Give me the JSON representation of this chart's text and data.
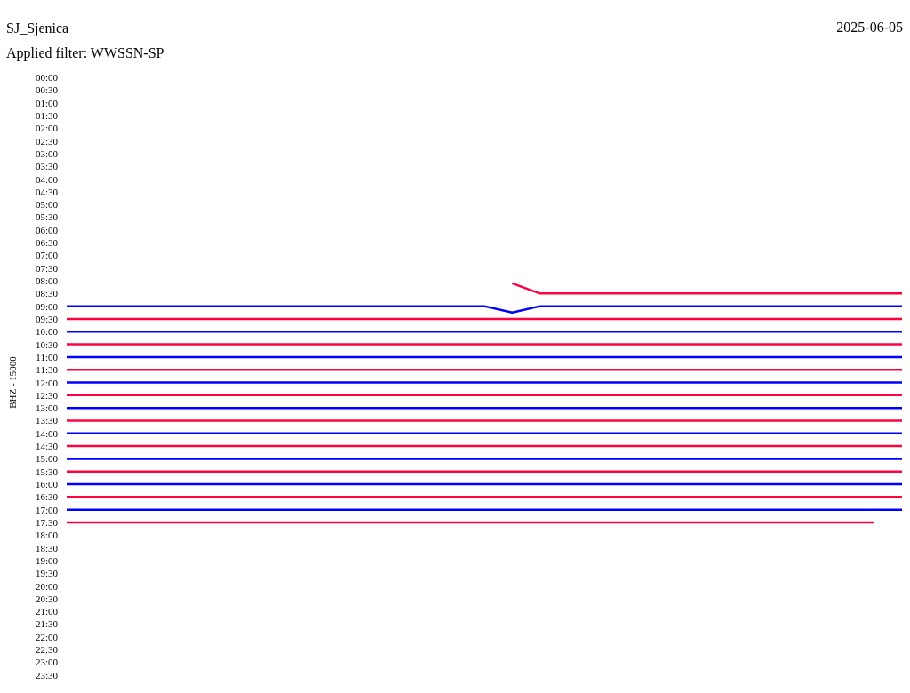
{
  "chart_data": {
    "type": "line",
    "title": "SJ_Sjenica",
    "ylabel": "BHZ - 15000",
    "annotations": [
      "2025-06-05",
      "Applied filter: WWSSN-SP"
    ],
    "categories": [
      null,
      null,
      null,
      null,
      null,
      null,
      null,
      null,
      null,
      null,
      null,
      null,
      null,
      null,
      null,
      null,
      null,
      null,
      null,
      null,
      null,
      null,
      null,
      null,
      null,
      null,
      null,
      null,
      null,
      null,
      null
    ],
    "ylim": [
      24,
      0
    ],
    "yticks": [
      {
        "value": 0,
        "label": "00:00"
      },
      {
        "value": 0.5,
        "label": "00:30"
      },
      {
        "value": 1,
        "label": "01:00"
      },
      {
        "value": 1.5,
        "label": "01:30"
      },
      {
        "value": 2,
        "label": "02:00"
      },
      {
        "value": 2.5,
        "label": "02:30"
      },
      {
        "value": 3,
        "label": "03:00"
      },
      {
        "value": 3.5,
        "label": "03:30"
      },
      {
        "value": 4,
        "label": "04:00"
      },
      {
        "value": 4.5,
        "label": "04:30"
      },
      {
        "value": 5,
        "label": "05:00"
      },
      {
        "value": 5.5,
        "label": "05:30"
      },
      {
        "value": 6,
        "label": "06:00"
      },
      {
        "value": 6.5,
        "label": "06:30"
      },
      {
        "value": 7,
        "label": "07:00"
      },
      {
        "value": 7.5,
        "label": "07:30"
      },
      {
        "value": 8,
        "label": "08:00"
      },
      {
        "value": 8.5,
        "label": "08:30"
      },
      {
        "value": 9,
        "label": "09:00"
      },
      {
        "value": 9.5,
        "label": "09:30"
      },
      {
        "value": 10,
        "label": "10:00"
      },
      {
        "value": 10.5,
        "label": "10:30"
      },
      {
        "value": 11,
        "label": "11:00"
      },
      {
        "value": 11.5,
        "label": "11:30"
      },
      {
        "value": 12,
        "label": "12:00"
      },
      {
        "value": 12.5,
        "label": "12:30"
      },
      {
        "value": 13,
        "label": "13:00"
      },
      {
        "value": 13.5,
        "label": "13:30"
      },
      {
        "value": 14,
        "label": "14:00"
      },
      {
        "value": 14.5,
        "label": "14:30"
      },
      {
        "value": 15,
        "label": "15:00"
      },
      {
        "value": 15.5,
        "label": "15:30"
      },
      {
        "value": 16,
        "label": "16:00"
      },
      {
        "value": 16.5,
        "label": "16:30"
      },
      {
        "value": 17,
        "label": "17:00"
      },
      {
        "value": 17.5,
        "label": "17:30"
      },
      {
        "value": 18,
        "label": "18:00"
      },
      {
        "value": 18.5,
        "label": "18:30"
      },
      {
        "value": 19,
        "label": "19:00"
      },
      {
        "value": 19.5,
        "label": "19:30"
      },
      {
        "value": 20,
        "label": "20:00"
      },
      {
        "value": 20.5,
        "label": "20:30"
      },
      {
        "value": 21,
        "label": "21:00"
      },
      {
        "value": 21.5,
        "label": "21:30"
      },
      {
        "value": 22,
        "label": "22:00"
      },
      {
        "value": 22.5,
        "label": "22:30"
      },
      {
        "value": 23,
        "label": "23:00"
      },
      {
        "value": 23.5,
        "label": "23:30"
      }
    ],
    "tick_labels": "y",
    "series": [
      {
        "color": "#ff0040",
        "values": [
          null,
          null,
          null,
          null,
          null,
          null,
          null,
          null,
          null,
          null,
          null,
          null,
          null,
          null,
          null,
          null,
          8.1,
          8.5,
          8.5,
          8.5,
          8.5,
          8.5,
          8.5,
          8.5,
          8.5,
          8.5,
          8.5,
          8.5,
          8.5,
          8.5,
          8.5
        ]
      },
      {
        "color": "#0000ff",
        "values": [
          9,
          9,
          9,
          9,
          9,
          9,
          9,
          9,
          9,
          9,
          9,
          9,
          9,
          9,
          9,
          9,
          9.25,
          9,
          9,
          9,
          9,
          9,
          9,
          9,
          9,
          9,
          9,
          9,
          9,
          9,
          9
        ]
      },
      {
        "color": "#ff0040",
        "values": [
          9.5,
          9.5,
          9.5,
          9.5,
          9.5,
          9.5,
          9.5,
          9.5,
          9.5,
          9.5,
          9.5,
          9.5,
          9.5,
          9.5,
          9.5,
          9.5,
          9.5,
          9.5,
          9.5,
          9.5,
          9.5,
          9.5,
          9.5,
          9.5,
          9.5,
          9.5,
          9.5,
          9.5,
          9.5,
          9.5,
          9.5
        ]
      },
      {
        "color": "#0000ff",
        "values": [
          10,
          10,
          10,
          10,
          10,
          10,
          10,
          10,
          10,
          10,
          10,
          10,
          10,
          10,
          10,
          10,
          10,
          10,
          10,
          10,
          10,
          10,
          10,
          10,
          10,
          10,
          10,
          10,
          10,
          10,
          10
        ]
      },
      {
        "color": "#ff0040",
        "values": [
          10.5,
          10.5,
          10.5,
          10.5,
          10.5,
          10.5,
          10.5,
          10.5,
          10.5,
          10.5,
          10.5,
          10.5,
          10.5,
          10.5,
          10.5,
          10.5,
          10.5,
          10.5,
          10.5,
          10.5,
          10.5,
          10.5,
          10.5,
          10.5,
          10.5,
          10.5,
          10.5,
          10.5,
          10.5,
          10.5,
          10.5
        ]
      },
      {
        "color": "#0000ff",
        "values": [
          11,
          11,
          11,
          11,
          11,
          11,
          11,
          11,
          11,
          11,
          11,
          11,
          11,
          11,
          11,
          11,
          11,
          11,
          11,
          11,
          11,
          11,
          11,
          11,
          11,
          11,
          11,
          11,
          11,
          11,
          11
        ]
      },
      {
        "color": "#ff0040",
        "values": [
          11.5,
          11.5,
          11.5,
          11.5,
          11.5,
          11.5,
          11.5,
          11.5,
          11.5,
          11.5,
          11.5,
          11.5,
          11.5,
          11.5,
          11.5,
          11.5,
          11.5,
          11.5,
          11.5,
          11.5,
          11.5,
          11.5,
          11.5,
          11.5,
          11.5,
          11.5,
          11.5,
          11.5,
          11.5,
          11.5,
          11.5
        ]
      },
      {
        "color": "#0000ff",
        "values": [
          12,
          12,
          12,
          12,
          12,
          12,
          12,
          12,
          12,
          12,
          12,
          12,
          12,
          12,
          12,
          12,
          12,
          12,
          12,
          12,
          12,
          12,
          12,
          12,
          12,
          12,
          12,
          12,
          12,
          12,
          12
        ]
      },
      {
        "color": "#ff0040",
        "values": [
          12.5,
          12.5,
          12.5,
          12.5,
          12.5,
          12.5,
          12.5,
          12.5,
          12.5,
          12.5,
          12.5,
          12.5,
          12.5,
          12.5,
          12.5,
          12.5,
          12.5,
          12.5,
          12.5,
          12.5,
          12.5,
          12.5,
          12.5,
          12.5,
          12.5,
          12.5,
          12.5,
          12.5,
          12.5,
          12.5,
          12.5
        ]
      },
      {
        "color": "#0000ff",
        "values": [
          13,
          13,
          13,
          13,
          13,
          13,
          13,
          13,
          13,
          13,
          13,
          13,
          13,
          13,
          13,
          13,
          13,
          13,
          13,
          13,
          13,
          13,
          13,
          13,
          13,
          13,
          13,
          13,
          13,
          13,
          13
        ]
      },
      {
        "color": "#ff0040",
        "values": [
          13.5,
          13.5,
          13.5,
          13.5,
          13.5,
          13.5,
          13.5,
          13.5,
          13.5,
          13.5,
          13.5,
          13.5,
          13.5,
          13.5,
          13.5,
          13.5,
          13.5,
          13.5,
          13.5,
          13.5,
          13.5,
          13.5,
          13.5,
          13.5,
          13.5,
          13.5,
          13.5,
          13.5,
          13.5,
          13.5,
          13.5
        ]
      },
      {
        "color": "#0000ff",
        "values": [
          14,
          14,
          14,
          14,
          14,
          14,
          14,
          14,
          14,
          14,
          14,
          14,
          14,
          14,
          14,
          14,
          14,
          14,
          14,
          14,
          14,
          14,
          14,
          14,
          14,
          14,
          14,
          14,
          14,
          14,
          14
        ]
      },
      {
        "color": "#ff0040",
        "values": [
          14.5,
          14.5,
          14.5,
          14.5,
          14.5,
          14.5,
          14.5,
          14.5,
          14.5,
          14.5,
          14.5,
          14.5,
          14.5,
          14.5,
          14.5,
          14.5,
          14.5,
          14.5,
          14.5,
          14.5,
          14.5,
          14.5,
          14.5,
          14.5,
          14.5,
          14.5,
          14.5,
          14.5,
          14.5,
          14.5,
          14.5
        ]
      },
      {
        "color": "#0000ff",
        "values": [
          15,
          15,
          15,
          15,
          15,
          15,
          15,
          15,
          15,
          15,
          15,
          15,
          15,
          15,
          15,
          15,
          15,
          15,
          15,
          15,
          15,
          15,
          15,
          15,
          15,
          15,
          15,
          15,
          15,
          15,
          15
        ]
      },
      {
        "color": "#ff0040",
        "values": [
          15.5,
          15.5,
          15.5,
          15.5,
          15.5,
          15.5,
          15.5,
          15.5,
          15.5,
          15.5,
          15.5,
          15.5,
          15.5,
          15.5,
          15.5,
          15.5,
          15.5,
          15.5,
          15.5,
          15.5,
          15.5,
          15.5,
          15.5,
          15.5,
          15.5,
          15.5,
          15.5,
          15.5,
          15.5,
          15.5,
          15.5
        ]
      },
      {
        "color": "#0000ff",
        "values": [
          16,
          16,
          16,
          16,
          16,
          16,
          16,
          16,
          16,
          16,
          16,
          16,
          16,
          16,
          16,
          16,
          16,
          16,
          16,
          16,
          16,
          16,
          16,
          16,
          16,
          16,
          16,
          16,
          16,
          16,
          16
        ]
      },
      {
        "color": "#ff0040",
        "values": [
          16.5,
          16.5,
          16.5,
          16.5,
          16.5,
          16.5,
          16.5,
          16.5,
          16.5,
          16.5,
          16.5,
          16.5,
          16.5,
          16.5,
          16.5,
          16.5,
          16.5,
          16.5,
          16.5,
          16.5,
          16.5,
          16.5,
          16.5,
          16.5,
          16.5,
          16.5,
          16.5,
          16.5,
          16.5,
          16.5,
          16.5
        ]
      },
      {
        "color": "#0000ff",
        "values": [
          17,
          17,
          17,
          17,
          17,
          17,
          17,
          17,
          17,
          17,
          17,
          17,
          17,
          17,
          17,
          17,
          17,
          17,
          17,
          17,
          17,
          17,
          17,
          17,
          17,
          17,
          17,
          17,
          17,
          17,
          17
        ]
      },
      {
        "color": "#ff0040",
        "values": [
          17.5,
          17.5,
          17.5,
          17.5,
          17.5,
          17.5,
          17.5,
          17.5,
          17.5,
          17.5,
          17.5,
          17.5,
          17.5,
          17.5,
          17.5,
          17.5,
          17.5,
          17.5,
          17.5,
          17.5,
          17.5,
          17.5,
          17.5,
          17.5,
          17.5,
          17.5,
          17.5,
          17.5,
          17.5,
          17.5,
          null
        ]
      }
    ]
  }
}
